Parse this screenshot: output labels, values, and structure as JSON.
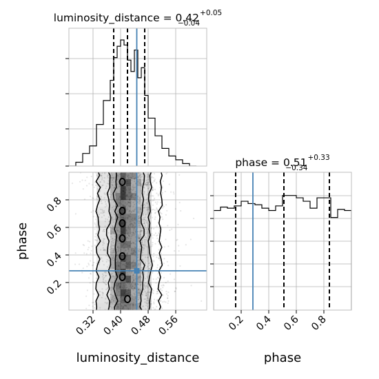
{
  "chart_data": {
    "type": "corner",
    "parameters": [
      "luminosity_distance",
      "phase"
    ],
    "truths": {
      "luminosity_distance": 0.447,
      "phase": 0.285
    },
    "colors": {
      "truth": "#4682b4",
      "hist": "#000000",
      "grid": "#b0b0b0",
      "density": "#000000"
    },
    "panels": {
      "luminosity_distance": {
        "title_main": "luminosity_distance = 0.42",
        "title_sup": "+0.05",
        "title_sub": "−0.04",
        "median": 0.42,
        "quantiles": [
          0.38,
          0.42,
          0.47
        ],
        "xlim": [
          0.25,
          0.65
        ],
        "grid": true,
        "bins": [
          {
            "x0": 0.25,
            "x1": 0.27,
            "h": 0.0
          },
          {
            "x0": 0.27,
            "x1": 0.29,
            "h": 0.03
          },
          {
            "x0": 0.29,
            "x1": 0.31,
            "h": 0.1
          },
          {
            "x0": 0.31,
            "x1": 0.33,
            "h": 0.16
          },
          {
            "x0": 0.33,
            "x1": 0.35,
            "h": 0.33
          },
          {
            "x0": 0.35,
            "x1": 0.37,
            "h": 0.52
          },
          {
            "x0": 0.37,
            "x1": 0.38,
            "h": 0.68
          },
          {
            "x0": 0.38,
            "x1": 0.39,
            "h": 0.86
          },
          {
            "x0": 0.39,
            "x1": 0.4,
            "h": 0.95
          },
          {
            "x0": 0.4,
            "x1": 0.41,
            "h": 1.0
          },
          {
            "x0": 0.41,
            "x1": 0.42,
            "h": 0.96
          },
          {
            "x0": 0.42,
            "x1": 0.43,
            "h": 0.84
          },
          {
            "x0": 0.43,
            "x1": 0.44,
            "h": 0.75
          },
          {
            "x0": 0.44,
            "x1": 0.45,
            "h": 0.92
          },
          {
            "x0": 0.45,
            "x1": 0.46,
            "h": 0.7
          },
          {
            "x0": 0.46,
            "x1": 0.47,
            "h": 0.78
          },
          {
            "x0": 0.47,
            "x1": 0.48,
            "h": 0.56
          },
          {
            "x0": 0.48,
            "x1": 0.5,
            "h": 0.38
          },
          {
            "x0": 0.5,
            "x1": 0.52,
            "h": 0.24
          },
          {
            "x0": 0.52,
            "x1": 0.54,
            "h": 0.14
          },
          {
            "x0": 0.54,
            "x1": 0.56,
            "h": 0.08
          },
          {
            "x0": 0.56,
            "x1": 0.58,
            "h": 0.05
          },
          {
            "x0": 0.58,
            "x1": 0.6,
            "h": 0.02
          },
          {
            "x0": 0.6,
            "x1": 0.62,
            "h": 0.0
          }
        ],
        "xticks": [
          0.32,
          0.4,
          0.48,
          0.56
        ],
        "xtick_labels": [
          "0.32",
          "0.40",
          "0.48",
          "0.56"
        ],
        "xlabel": "luminosity_distance"
      },
      "phase": {
        "title_main": "phase = 0.51",
        "title_sup": "+0.33",
        "title_sub": "−0.34",
        "median": 0.51,
        "quantiles": [
          0.16,
          0.51,
          0.84
        ],
        "xlim": [
          0.0,
          1.0
        ],
        "grid": true,
        "bins": [
          {
            "x0": 0.0,
            "x1": 0.05,
            "h": 0.86
          },
          {
            "x0": 0.05,
            "x1": 0.1,
            "h": 0.89
          },
          {
            "x0": 0.1,
            "x1": 0.15,
            "h": 0.88
          },
          {
            "x0": 0.15,
            "x1": 0.2,
            "h": 0.9
          },
          {
            "x0": 0.2,
            "x1": 0.25,
            "h": 0.94
          },
          {
            "x0": 0.25,
            "x1": 0.3,
            "h": 0.92
          },
          {
            "x0": 0.3,
            "x1": 0.35,
            "h": 0.91
          },
          {
            "x0": 0.35,
            "x1": 0.4,
            "h": 0.88
          },
          {
            "x0": 0.4,
            "x1": 0.45,
            "h": 0.86
          },
          {
            "x0": 0.45,
            "x1": 0.5,
            "h": 0.9
          },
          {
            "x0": 0.5,
            "x1": 0.55,
            "h": 0.99
          },
          {
            "x0": 0.55,
            "x1": 0.6,
            "h": 0.99
          },
          {
            "x0": 0.6,
            "x1": 0.65,
            "h": 0.97
          },
          {
            "x0": 0.65,
            "x1": 0.7,
            "h": 0.94
          },
          {
            "x0": 0.7,
            "x1": 0.75,
            "h": 0.88
          },
          {
            "x0": 0.75,
            "x1": 0.8,
            "h": 0.97
          },
          {
            "x0": 0.8,
            "x1": 0.85,
            "h": 0.97
          },
          {
            "x0": 0.85,
            "x1": 0.9,
            "h": 0.8
          },
          {
            "x0": 0.9,
            "x1": 0.95,
            "h": 0.87
          },
          {
            "x0": 0.95,
            "x1": 1.0,
            "h": 0.86
          }
        ],
        "xticks": [
          0.2,
          0.4,
          0.6,
          0.8
        ],
        "xtick_labels": [
          "0.2",
          "0.4",
          "0.6",
          "0.8"
        ],
        "xlabel": "phase"
      }
    },
    "joint": {
      "x": "luminosity_distance",
      "y": "phase",
      "xlim": [
        0.25,
        0.65
      ],
      "ylim": [
        0.0,
        1.0
      ],
      "yticks": [
        0.2,
        0.4,
        0.6,
        0.8
      ],
      "ytick_labels": [
        "0.2",
        "0.4",
        "0.6",
        "0.8"
      ],
      "ylabel": "phase",
      "grid": true
    }
  }
}
